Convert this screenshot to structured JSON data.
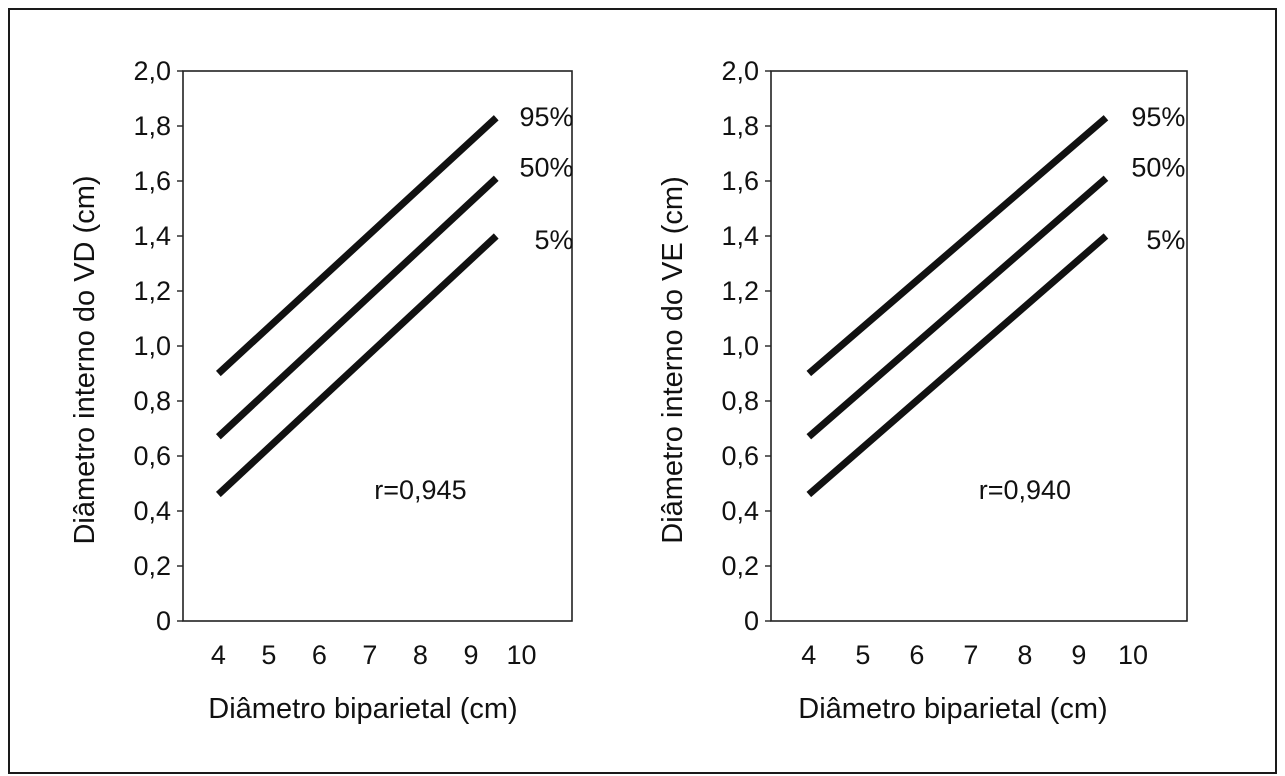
{
  "chart_data": [
    {
      "type": "line",
      "title": "",
      "xlabel": "Diâmetro biparietal (cm)",
      "ylabel": "Diâmetro interno do VD (cm)",
      "xlim": [
        3.3,
        11
      ],
      "ylim": [
        0,
        2.0
      ],
      "xticks": [
        4,
        5,
        6,
        7,
        8,
        9,
        10
      ],
      "yticks": [
        "0",
        "0,2",
        "0,4",
        "0,6",
        "0,8",
        "1,0",
        "1,2",
        "1,4",
        "1,6",
        "1,8",
        "2,0"
      ],
      "grid": false,
      "series": [
        {
          "name": "95%",
          "x": [
            4,
            9.5
          ],
          "y": [
            0.9,
            1.83
          ]
        },
        {
          "name": "50%",
          "x": [
            4,
            9.5
          ],
          "y": [
            0.67,
            1.61
          ]
        },
        {
          "name": "5%",
          "x": [
            4,
            9.5
          ],
          "y": [
            0.46,
            1.4
          ]
        }
      ],
      "annotation": "r=0,945"
    },
    {
      "type": "line",
      "title": "",
      "xlabel": "Diâmetro biparietal (cm)",
      "ylabel": "Diâmetro interno do VE (cm)",
      "xlim": [
        3.3,
        11
      ],
      "ylim": [
        0,
        2.0
      ],
      "xticks": [
        4,
        5,
        6,
        7,
        8,
        9,
        10
      ],
      "yticks": [
        "0",
        "0,2",
        "0,4",
        "0,6",
        "0,8",
        "1,0",
        "1,2",
        "1,4",
        "1,6",
        "1,8",
        "2,0"
      ],
      "grid": false,
      "series": [
        {
          "name": "95%",
          "x": [
            4,
            9.5
          ],
          "y": [
            0.9,
            1.83
          ]
        },
        {
          "name": "50%",
          "x": [
            4,
            9.5
          ],
          "y": [
            0.67,
            1.61
          ]
        },
        {
          "name": "5%",
          "x": [
            4,
            9.5
          ],
          "y": [
            0.46,
            1.4
          ]
        }
      ],
      "annotation": "r=0,940"
    }
  ]
}
